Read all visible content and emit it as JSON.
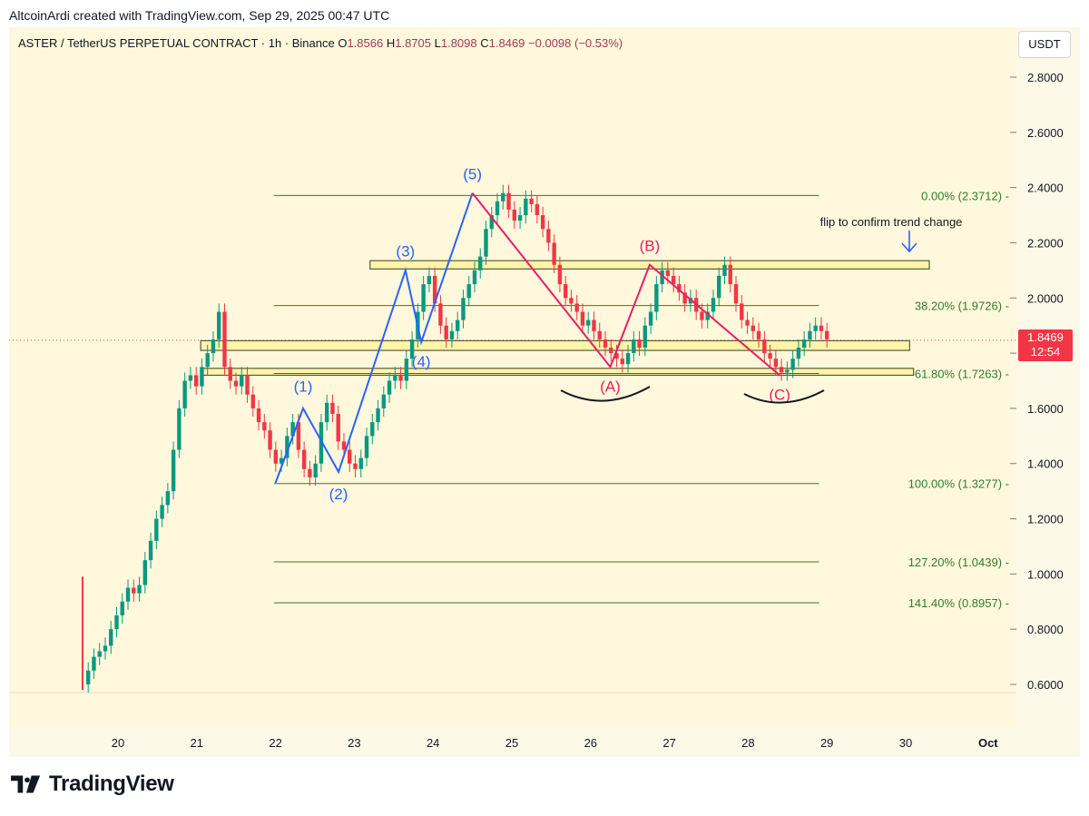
{
  "header": {
    "credit": "AltcoinArdi created with TradingView.com, Sep 29, 2025 00:47 UTC"
  },
  "legend": {
    "symbol": "ASTER / TetherUS PERPETUAL CONTRACT · 1h · Binance",
    "o_label": "O",
    "o_value": "1.8566",
    "h_label": "H",
    "h_value": "1.8705",
    "l_label": "L",
    "l_value": "1.8098",
    "c_label": "C",
    "c_value": "1.8469",
    "change": "−0.0098 (−0.53%)"
  },
  "currency_button": "USDT",
  "price_tag": {
    "price": "1.8469",
    "countdown": "12:54"
  },
  "footer": {
    "brand": "TradingView"
  },
  "colors": {
    "up": "#089981",
    "down": "#f23645",
    "fib": "#2e7d32",
    "wave_blue": "#2962ff",
    "wave_red": "#e91e63",
    "zone": "#fff3a0"
  },
  "chart_data": {
    "type": "candlestick",
    "symbol": "ASTER / TetherUS PERPETUAL CONTRACT",
    "interval": "1h",
    "exchange": "Binance",
    "x_ticks": [
      "20",
      "21",
      "22",
      "23",
      "24",
      "25",
      "26",
      "27",
      "28",
      "29",
      "30",
      "Oct"
    ],
    "y_ticks": [
      "0.6000",
      "0.8000",
      "1.0000",
      "1.2000",
      "1.4000",
      "1.6000",
      "1.8000",
      "2.0000",
      "2.2000",
      "2.4000",
      "2.6000",
      "2.8000"
    ],
    "ylim": [
      0.55,
      2.88
    ],
    "last_price": 1.8469,
    "fib_levels": [
      {
        "label": "0.00% (2.3712)",
        "value": 2.3712
      },
      {
        "label": "38.20% (1.9726)",
        "value": 1.9726
      },
      {
        "label": "61.80% (1.7263)",
        "value": 1.7263
      },
      {
        "label": "100.00% (1.3277)",
        "value": 1.3277
      },
      {
        "label": "127.20% (1.0439)",
        "value": 1.0439
      },
      {
        "label": "141.40% (0.8957)",
        "value": 0.8957
      }
    ],
    "zones": [
      {
        "from_day": 23.2,
        "to_day": 30.3,
        "low": 2.105,
        "high": 2.135
      },
      {
        "from_day": 21.05,
        "to_day": 30.05,
        "low": 1.81,
        "high": 1.845
      },
      {
        "from_day": 21.05,
        "to_day": 30.1,
        "low": 1.72,
        "high": 1.745
      }
    ],
    "impulse_waves": [
      {
        "label": "(1)",
        "day": 22.35,
        "price": 1.6,
        "label_price": 1.68
      },
      {
        "label": "(2)",
        "day": 22.8,
        "price": 1.37,
        "label_price": 1.29
      },
      {
        "label": "(3)",
        "day": 23.65,
        "price": 2.1,
        "label_price": 2.17
      },
      {
        "label": "(4)",
        "day": 23.85,
        "price": 1.84,
        "label_price": 1.77
      },
      {
        "label": "(5)",
        "day": 24.5,
        "price": 2.38,
        "label_price": 2.45
      }
    ],
    "impulse_start": {
      "day": 22.0,
      "price": 1.33
    },
    "correction_waves": [
      {
        "label": "(A)",
        "day": 26.25,
        "price": 1.75,
        "label_price": 1.68
      },
      {
        "label": "(B)",
        "day": 26.75,
        "price": 2.12,
        "label_price": 2.19
      },
      {
        "label": "(C)",
        "day": 28.4,
        "price": 1.72,
        "label_price": 1.65
      }
    ],
    "correction_start": {
      "day": 24.5,
      "price": 2.38
    },
    "annotation": "flip to confirm trend change",
    "prices": [
      0.6,
      0.65,
      0.7,
      0.72,
      0.74,
      0.8,
      0.85,
      0.9,
      0.95,
      0.93,
      0.96,
      1.05,
      1.12,
      1.2,
      1.25,
      1.3,
      1.45,
      1.6,
      1.7,
      1.72,
      1.68,
      1.75,
      1.8,
      1.85,
      1.95,
      1.75,
      1.7,
      1.68,
      1.72,
      1.65,
      1.6,
      1.55,
      1.52,
      1.45,
      1.4,
      1.42,
      1.5,
      1.55,
      1.45,
      1.38,
      1.35,
      1.4,
      1.55,
      1.62,
      1.58,
      1.48,
      1.45,
      1.4,
      1.38,
      1.42,
      1.5,
      1.55,
      1.6,
      1.65,
      1.7,
      1.72,
      1.7,
      1.78,
      1.85,
      1.95,
      2.05,
      2.08,
      1.98,
      1.9,
      1.85,
      1.88,
      1.92,
      2.0,
      2.05,
      2.1,
      2.15,
      2.25,
      2.3,
      2.35,
      2.38,
      2.32,
      2.28,
      2.3,
      2.36,
      2.34,
      2.3,
      2.25,
      2.2,
      2.12,
      2.05,
      2.0,
      1.98,
      1.95,
      1.9,
      1.92,
      1.88,
      1.85,
      1.82,
      1.8,
      1.78,
      1.76,
      1.8,
      1.85,
      1.82,
      1.9,
      1.95,
      2.05,
      2.1,
      2.08,
      2.05,
      2.02,
      1.98,
      2.0,
      1.95,
      1.92,
      1.95,
      2.0,
      2.08,
      2.12,
      2.05,
      1.98,
      1.92,
      1.9,
      1.88,
      1.85,
      1.8,
      1.78,
      1.75,
      1.73,
      1.74,
      1.78,
      1.82,
      1.85,
      1.88,
      1.9,
      1.88,
      1.85
    ]
  }
}
